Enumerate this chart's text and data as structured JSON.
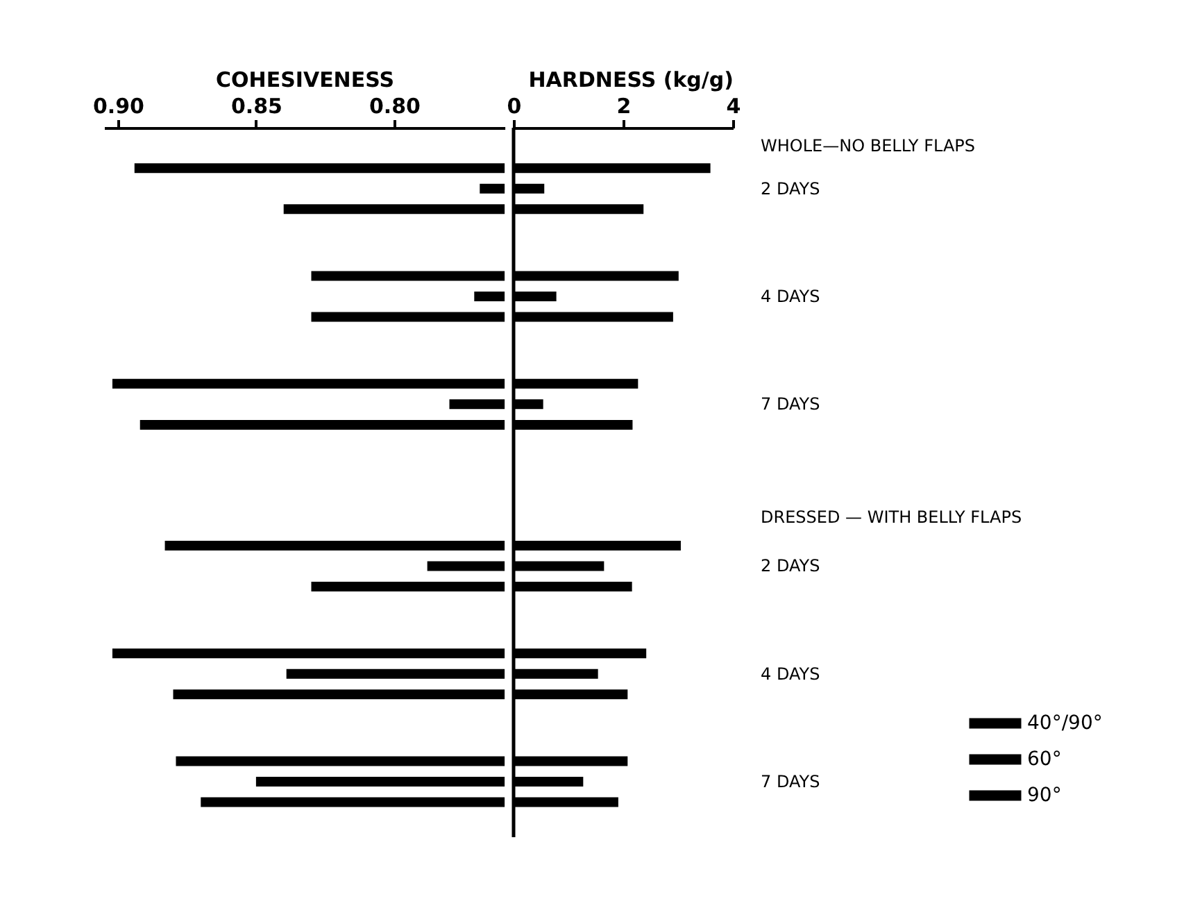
{
  "chart_data": [
    {
      "type": "bar",
      "orientation": "horizontal",
      "xlabel": "COHESIVENESS",
      "xlim": [
        0.905,
        0.76
      ],
      "xticks": [
        {
          "value": 0.9,
          "label": "0.90"
        },
        0.85,
        {
          "value": 0.8,
          "label": "0.80"
        }
      ],
      "tick_labels": "x",
      "categories": [
        null,
        null,
        null,
        null,
        null,
        null
      ],
      "series": [
        {
          "color": "#000000",
          "values": [
            0.894,
            0.83,
            0.902,
            0.883,
            0.902,
            0.879
          ]
        },
        {
          "color": "#000000",
          "values": [
            0.769,
            0.771,
            0.78,
            0.788,
            0.839,
            0.85
          ]
        },
        {
          "color": "#000000",
          "values": [
            0.84,
            0.83,
            0.892,
            0.83,
            0.88,
            0.87
          ]
        }
      ]
    },
    {
      "type": "bar",
      "orientation": "horizontal",
      "xlabel": "HARDNESS (kg/g)",
      "xlim": [
        0,
        4
      ],
      "xticks": [
        0,
        2,
        4
      ],
      "categories": [
        "2 DAYS",
        "4 DAYS",
        "7 DAYS",
        "2 DAYS",
        "4 DAYS",
        "7 DAYS"
      ],
      "legend": "bottom right",
      "annotations": [
        "WHOLE—NO BELLY FLAPS",
        "DRESSED — WITH BELLY FLAPS"
      ],
      "series": [
        {
          "name": "40°/90°",
          "color": "#000000",
          "values": [
            3.59,
            3.01,
            2.27,
            3.05,
            2.42,
            2.08
          ]
        },
        {
          "name": "60°",
          "color": "#000000",
          "values": [
            0.56,
            0.78,
            0.54,
            1.65,
            1.54,
            1.27
          ]
        },
        {
          "name": "90°",
          "color": "#000000",
          "values": [
            2.37,
            2.91,
            2.17,
            2.16,
            2.08,
            1.91
          ]
        }
      ]
    }
  ]
}
